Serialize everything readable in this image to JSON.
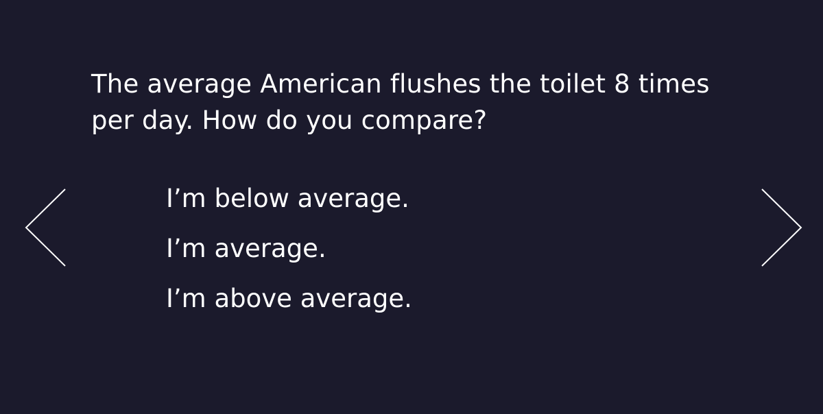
{
  "question": {
    "text": "The average American flushes the toilet 8 times per day. How do you compare?"
  },
  "options": [
    {
      "label": "I’m below average."
    },
    {
      "label": "I’m average."
    },
    {
      "label": "I’m above average."
    }
  ],
  "navigation": {
    "prev_icon": "chevron-left-icon",
    "next_icon": "chevron-right-icon"
  },
  "colors": {
    "background": "#1b1a2c",
    "text": "#ffffff"
  }
}
